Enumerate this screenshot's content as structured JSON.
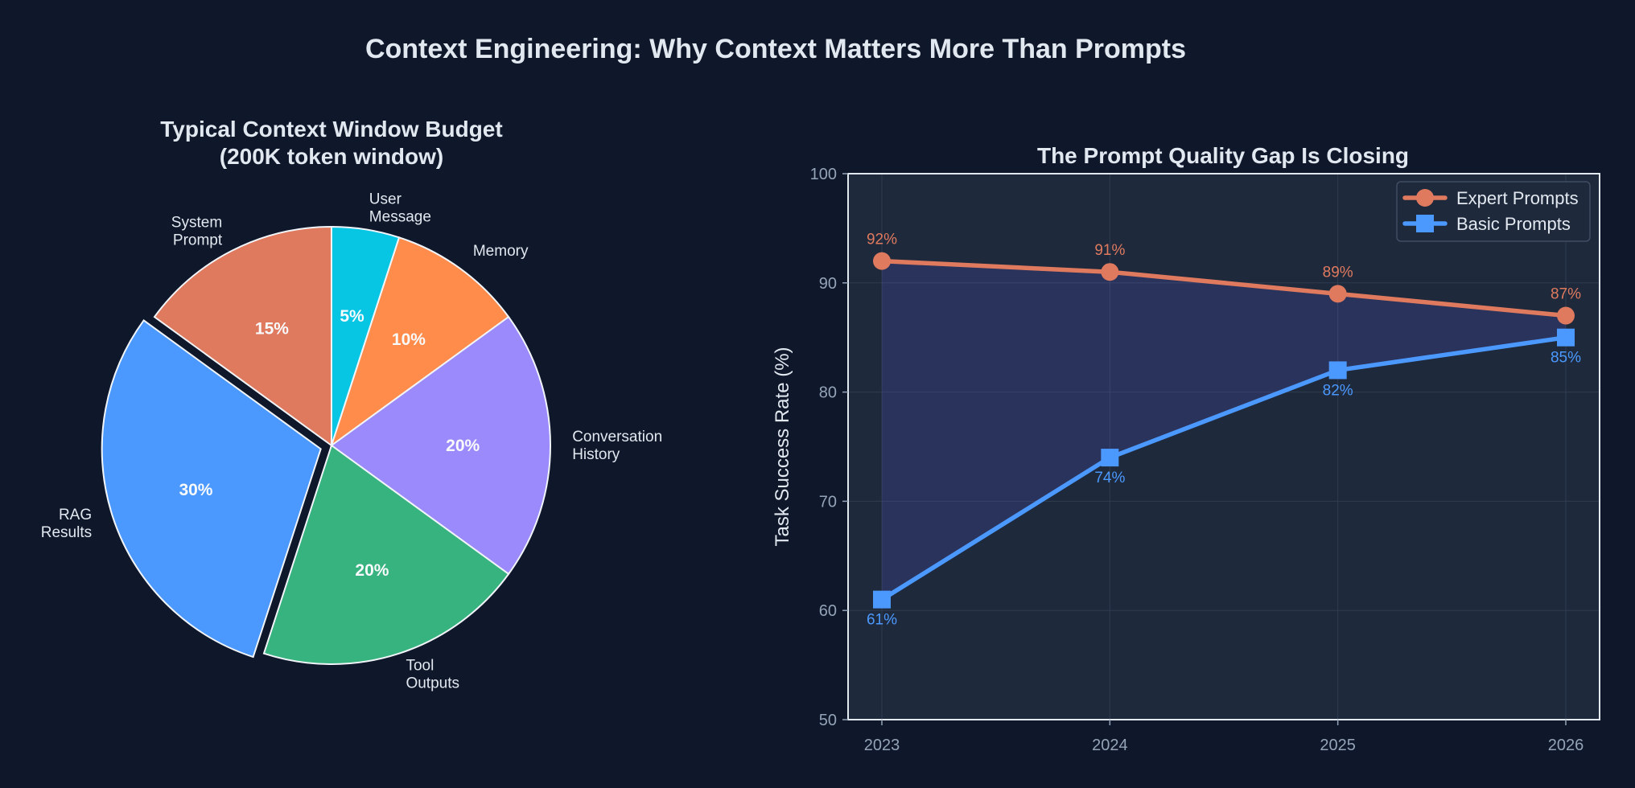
{
  "chart_data": [
    {
      "type": "pie",
      "title": "Typical Context Window Budget\n(200K token window)",
      "slices": [
        {
          "label": "User\nMessage",
          "value": 5,
          "pct_label": "5%",
          "color": "#06c6e4"
        },
        {
          "label": "Memory",
          "value": 10,
          "pct_label": "10%",
          "color": "#ff8c4b"
        },
        {
          "label": "Conversation\nHistory",
          "value": 20,
          "pct_label": "20%",
          "color": "#9b8afb"
        },
        {
          "label": "Tool\nOutputs",
          "value": 20,
          "pct_label": "20%",
          "color": "#37b37f"
        },
        {
          "label": "RAG\nResults",
          "value": 30,
          "pct_label": "30%",
          "color": "#4b99ff",
          "exploded": true
        },
        {
          "label": "System\nPrompt",
          "value": 15,
          "pct_label": "15%",
          "color": "#e07a5f"
        }
      ],
      "start_angle_deg": 90,
      "direction": "clockwise"
    },
    {
      "type": "line",
      "title": "The Prompt Quality Gap Is Closing",
      "x": [
        2023,
        2024,
        2025,
        2026
      ],
      "xticks": [
        "2023",
        "2024",
        "2025",
        "2026"
      ],
      "ylabel": "Task Success Rate (%)",
      "ylim": [
        50,
        100
      ],
      "yticks": [
        50,
        60,
        70,
        80,
        90,
        100
      ],
      "grid": true,
      "legend_position": "upper right",
      "shaded_gap": true,
      "gap_color": "#6366f1",
      "series": [
        {
          "name": "Expert Prompts",
          "values": [
            92,
            91,
            89,
            87
          ],
          "labels": [
            "92%",
            "91%",
            "89%",
            "87%"
          ],
          "color": "#e07a5f",
          "marker": "circle",
          "label_position": "above"
        },
        {
          "name": "Basic Prompts",
          "values": [
            61,
            74,
            82,
            85
          ],
          "labels": [
            "61%",
            "74%",
            "82%",
            "85%"
          ],
          "color": "#4b99ff",
          "marker": "square",
          "label_position": "below"
        }
      ]
    }
  ],
  "figure": {
    "title": "Context Engineering: Why Context Matters More Than Prompts"
  }
}
